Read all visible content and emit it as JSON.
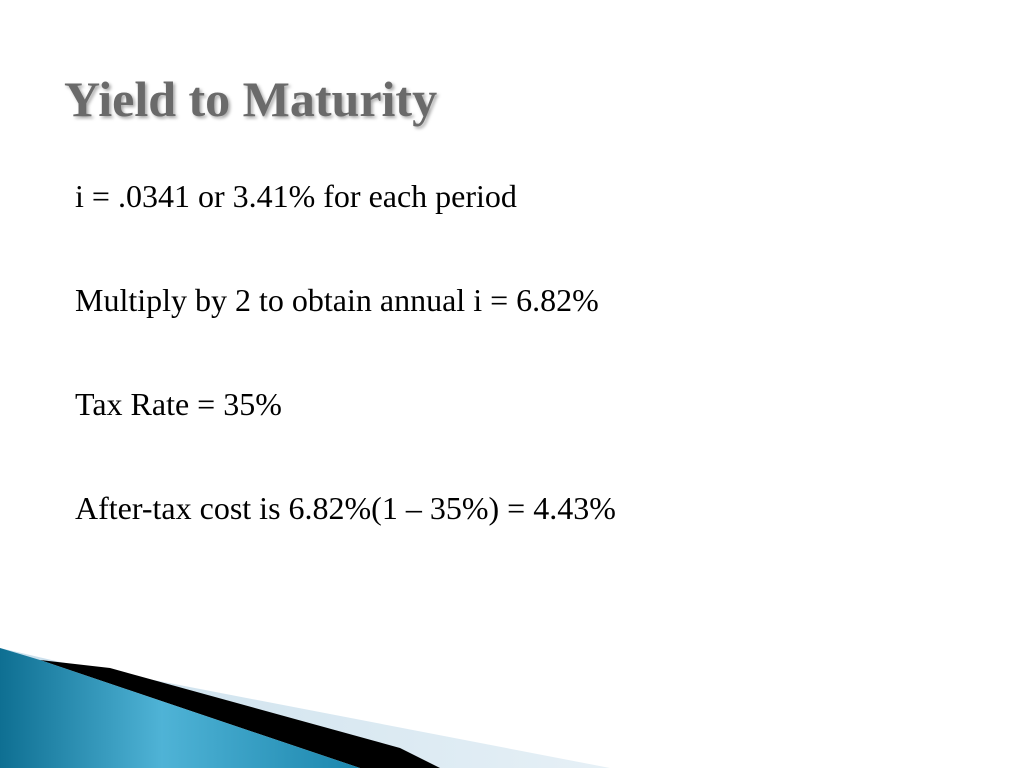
{
  "slide": {
    "title": "Yield to Maturity",
    "bullets": [
      "i = .0341 or 3.41% for each period",
      "Multiply by 2 to obtain annual i = 6.82%",
      "Tax Rate = 35%",
      "After-tax cost is 6.82%(1 – 35%) = 4.43%"
    ]
  },
  "colors": {
    "title": "#6a6a6a",
    "text": "#000000",
    "accent_teal": "#1e8fb5",
    "accent_light": "#d6e8f2",
    "accent_dark": "#000000"
  }
}
